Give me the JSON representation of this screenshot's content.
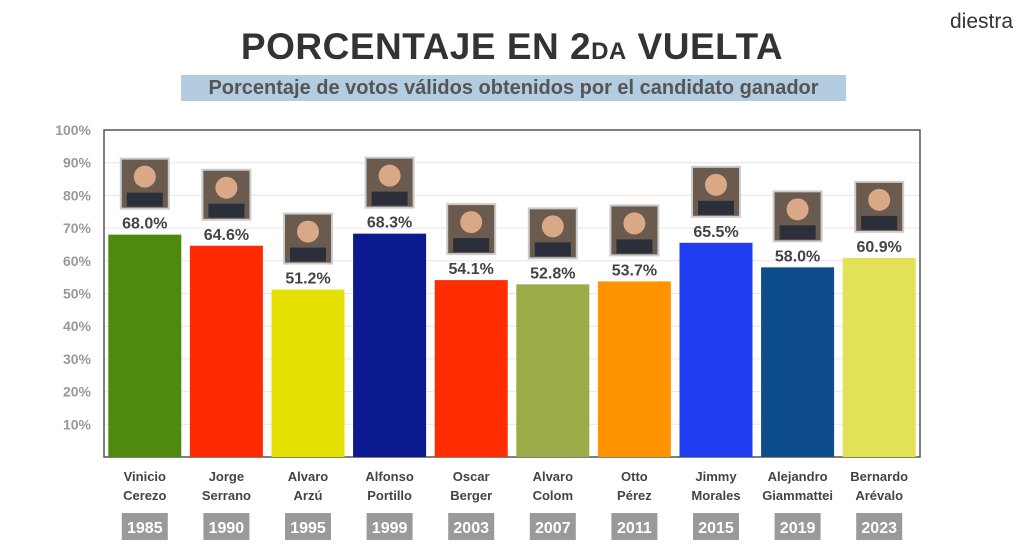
{
  "logo": {
    "text": "diestra"
  },
  "chart_data": {
    "type": "bar",
    "title": "PORCENTAJE EN 2DA VUELTA",
    "title_parts": {
      "main": "PORCENTAJE EN 2",
      "small": "DA",
      "end": " VUELTA"
    },
    "subtitle": "Porcentaje de votos válidos obtenidos por el candidato ganador",
    "ylim": [
      0,
      100
    ],
    "yticks": [
      "10%",
      "20%",
      "30%",
      "40%",
      "50%",
      "60%",
      "70%",
      "80%",
      "90%",
      "100%"
    ],
    "grid": true,
    "categories": [
      {
        "name1": "Vinicio",
        "name2": "Cerezo",
        "year": "1985",
        "value": 68.0,
        "label": "68.0%",
        "color": "#4d8a0e"
      },
      {
        "name1": "Jorge",
        "name2": "Serrano",
        "year": "1990",
        "value": 64.6,
        "label": "64.6%",
        "color": "#ff2a00"
      },
      {
        "name1": "Alvaro",
        "name2": "Arzú",
        "year": "1995",
        "value": 51.2,
        "label": "51.2%",
        "color": "#e6e000"
      },
      {
        "name1": "Alfonso",
        "name2": "Portillo",
        "year": "1999",
        "value": 68.3,
        "label": "68.3%",
        "color": "#0c1a8f"
      },
      {
        "name1": "Oscar",
        "name2": "Berger",
        "year": "2003",
        "value": 54.1,
        "label": "54.1%",
        "color": "#ff2d00"
      },
      {
        "name1": "Alvaro",
        "name2": "Colom",
        "year": "2007",
        "value": 52.8,
        "label": "52.8%",
        "color": "#9aab48"
      },
      {
        "name1": "Otto",
        "name2": "Pérez",
        "year": "2011",
        "value": 53.7,
        "label": "53.7%",
        "color": "#ff9400"
      },
      {
        "name1": "Jimmy",
        "name2": "Morales",
        "year": "2015",
        "value": 65.5,
        "label": "65.5%",
        "color": "#1f3df0"
      },
      {
        "name1": "Alejandro",
        "name2": "Giammattei",
        "year": "2019",
        "value": 58.0,
        "label": "58.0%",
        "color": "#0d4d8d"
      },
      {
        "name1": "Bernardo",
        "name2": "Arévalo",
        "year": "2023",
        "value": 60.9,
        "label": "60.9%",
        "color": "#e3e257"
      }
    ]
  }
}
